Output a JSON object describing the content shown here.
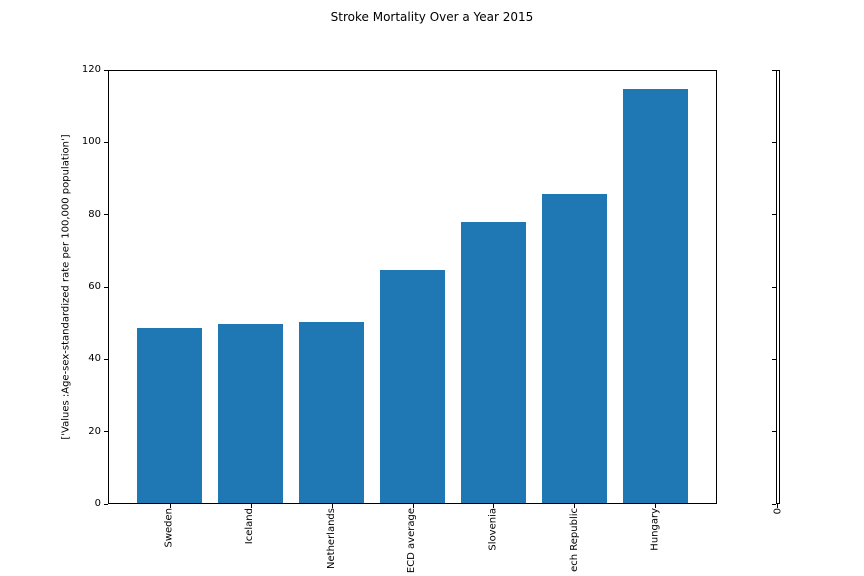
{
  "chart_data": {
    "type": "bar",
    "title": "Stroke Mortality Over a Year 2015",
    "categories": [
      "Sweden",
      "Iceland",
      "Netherlands",
      "ECD average",
      "Slovenia",
      "ech Republic",
      "Hungary"
    ],
    "values": [
      48.3,
      49.5,
      50.0,
      64.5,
      77.8,
      85.5,
      114.5
    ],
    "xlabel": "",
    "ylabel": "['Values :Age-sex-standardized rate per 100,000 population']",
    "ylim": [
      0,
      120
    ],
    "yticks": [
      0,
      20,
      40,
      60,
      80,
      100,
      120
    ],
    "bar_color": "#1f77b4",
    "grid": false,
    "legend": null,
    "x_tick_rotation_deg": 90
  },
  "secondary_axis": {
    "yticks": [
      0,
      20,
      40,
      60,
      80,
      100,
      120
    ],
    "x_tick_label": "0"
  }
}
